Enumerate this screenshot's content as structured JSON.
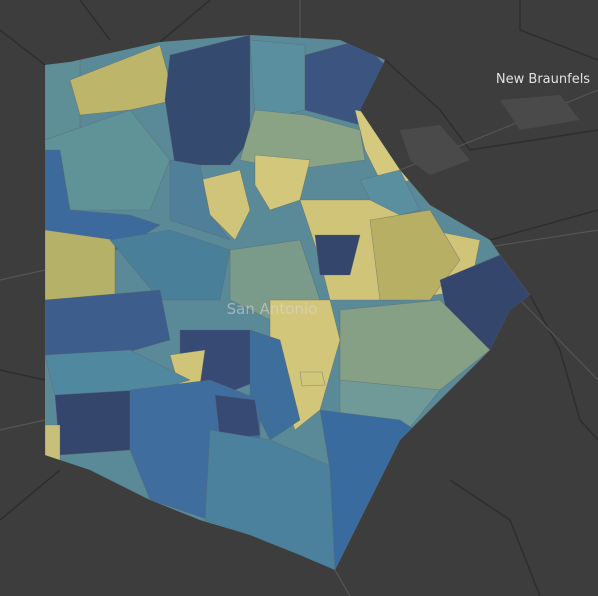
{
  "labels": {
    "city": "New Braunfels",
    "center": "San Antonio"
  }
}
